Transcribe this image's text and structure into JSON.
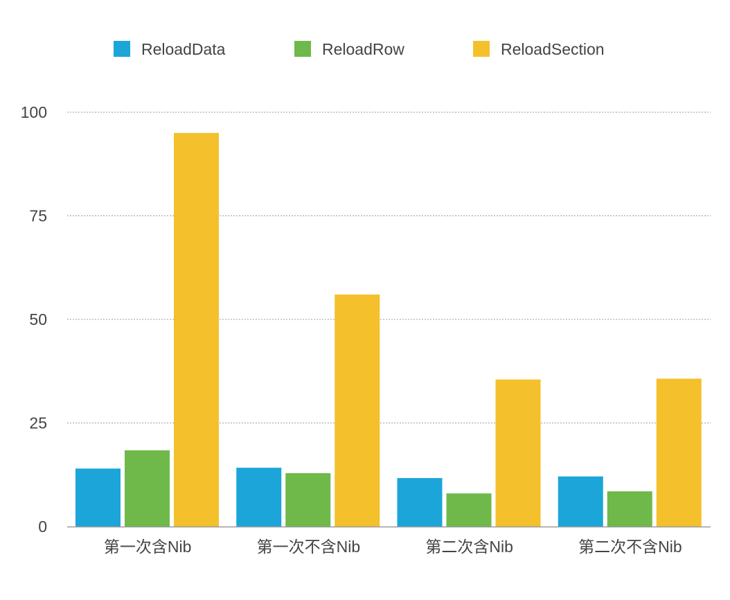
{
  "chart_data": {
    "type": "bar",
    "title": "",
    "xlabel": "",
    "ylabel": "",
    "categories": [
      "第一次含Nib",
      "第一次不含Nib",
      "第二次含Nib",
      "第二次不含Nib"
    ],
    "series": [
      {
        "name": "ReloadData",
        "color": "#1CA5D8",
        "values": [
          14,
          14.2,
          11.7,
          12.1
        ]
      },
      {
        "name": "ReloadRow",
        "color": "#6EB94A",
        "values": [
          18.4,
          12.9,
          8,
          8.5
        ]
      },
      {
        "name": "ReloadSection",
        "color": "#F4C02B",
        "values": [
          95,
          56,
          35.5,
          35.7
        ]
      }
    ],
    "ylim": [
      0,
      100
    ],
    "yticks": [
      0,
      25,
      50,
      75,
      100
    ],
    "grid": true,
    "legend_position": "top"
  }
}
